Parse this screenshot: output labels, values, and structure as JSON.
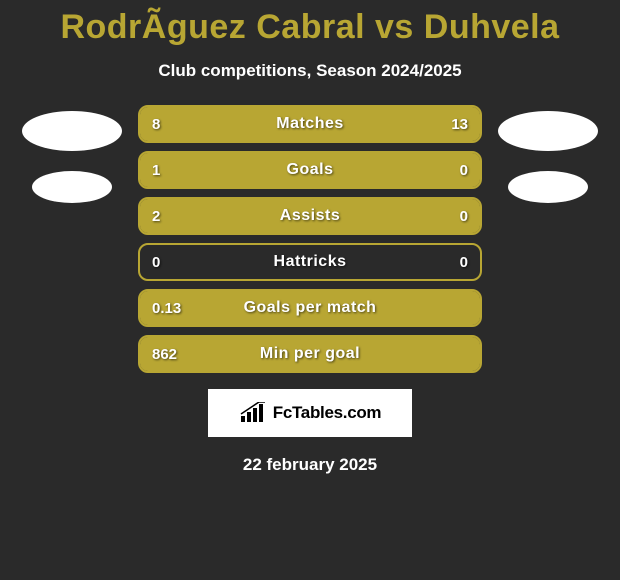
{
  "title": "RodrÃ­guez Cabral vs Duhvela",
  "subtitle": "Club competitions, Season 2024/2025",
  "date": "22 february 2025",
  "logo_text": "FcTables.com",
  "colors": {
    "background": "#2a2a2a",
    "accent": "#b8a633",
    "text": "#ffffff",
    "avatar": "#ffffff"
  },
  "stats": [
    {
      "label": "Matches",
      "left_value": "8",
      "right_value": "13",
      "left_pct": 38,
      "right_pct": 62
    },
    {
      "label": "Goals",
      "left_value": "1",
      "right_value": "0",
      "left_pct": 75,
      "right_pct": 25
    },
    {
      "label": "Assists",
      "left_value": "2",
      "right_value": "0",
      "left_pct": 76,
      "right_pct": 24
    },
    {
      "label": "Hattricks",
      "left_value": "0",
      "right_value": "0",
      "left_pct": 0,
      "right_pct": 0
    },
    {
      "label": "Goals per match",
      "left_value": "0.13",
      "right_value": "",
      "left_pct": 100,
      "right_pct": 0
    },
    {
      "label": "Min per goal",
      "left_value": "862",
      "right_value": "",
      "left_pct": 100,
      "right_pct": 0
    }
  ]
}
